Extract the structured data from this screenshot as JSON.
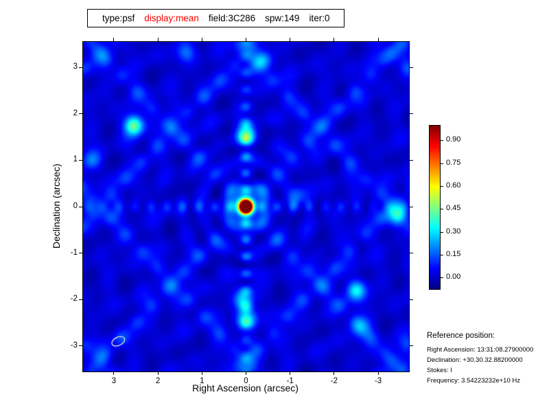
{
  "title": {
    "segments": [
      {
        "text": "type:psf",
        "color": "#000000"
      },
      {
        "text": "display:mean",
        "color": "#ff0000"
      },
      {
        "text": "field:3C286",
        "color": "#000000"
      },
      {
        "text": "spw:149",
        "color": "#000000"
      },
      {
        "text": "iter:0",
        "color": "#000000"
      }
    ]
  },
  "chart_data": {
    "type": "heatmap",
    "description": "Point spread function (synthesized beam) image: strong central peak at the origin, cross-shaped sidelobe ridges along RA=0 and Dec=0, and a diagonal lattice of sidelobe ripples on a dark-blue background (jet colormap).",
    "xlabel": "Right Ascension (arcsec)",
    "ylabel": "Declination (arcsec)",
    "x_range": [
      3.7,
      -3.7
    ],
    "y_range": [
      -3.55,
      3.55
    ],
    "x_ticks": [
      3,
      2,
      1,
      0,
      -1,
      -2,
      -3
    ],
    "y_ticks": [
      -3,
      -2,
      -1,
      0,
      1,
      2,
      3
    ],
    "grid": false,
    "colormap": "jet",
    "value_range": [
      -0.07,
      1.0
    ],
    "colorbar_ticks": [
      0.9,
      0.75,
      0.6,
      0.45,
      0.3,
      0.15,
      0.0
    ],
    "peak": {
      "x": 0.0,
      "y": 0.0,
      "value": 1.0
    },
    "secondary_peaks": [
      {
        "x": 0.0,
        "y": 1.55,
        "value": 0.38
      },
      {
        "x": 2.55,
        "y": 1.75,
        "value": 0.45
      },
      {
        "x": 0.05,
        "y": -2.0,
        "value": 0.28
      },
      {
        "x": 0.0,
        "y": -2.4,
        "value": 0.3
      },
      {
        "x": -2.5,
        "y": -1.8,
        "value": 0.32
      },
      {
        "x": -2.6,
        "y": -2.6,
        "value": 0.2
      },
      {
        "x": -3.45,
        "y": -0.2,
        "value": 0.25
      },
      {
        "x": -0.4,
        "y": 3.15,
        "value": 0.22
      },
      {
        "x": 1.35,
        "y": 3.3,
        "value": 0.15
      },
      {
        "x": 3.5,
        "y": 1.0,
        "value": 0.18
      },
      {
        "x": -1.15,
        "y": 0.25,
        "value": 0.14
      }
    ],
    "sidelobe_ridges": {
      "vertical_at_x": 0,
      "horizontal_at_y": 0,
      "diagonal_spacing_arcsec": 2.35
    },
    "beam_ellipse": {
      "x": 2.9,
      "y": -2.9,
      "major_arcsec": 0.32,
      "minor_arcsec": 0.18,
      "angle_deg": -25
    }
  },
  "colorbar": {
    "tick_label_format": "0.00"
  },
  "reference": {
    "heading": "Reference position:",
    "lines": [
      "Right Ascension: 13:31:08.27900000",
      "Declination: +30.30.32.88200000",
      "Stokes: I",
      "Frequency: 3.54223232e+10 Hz"
    ]
  }
}
